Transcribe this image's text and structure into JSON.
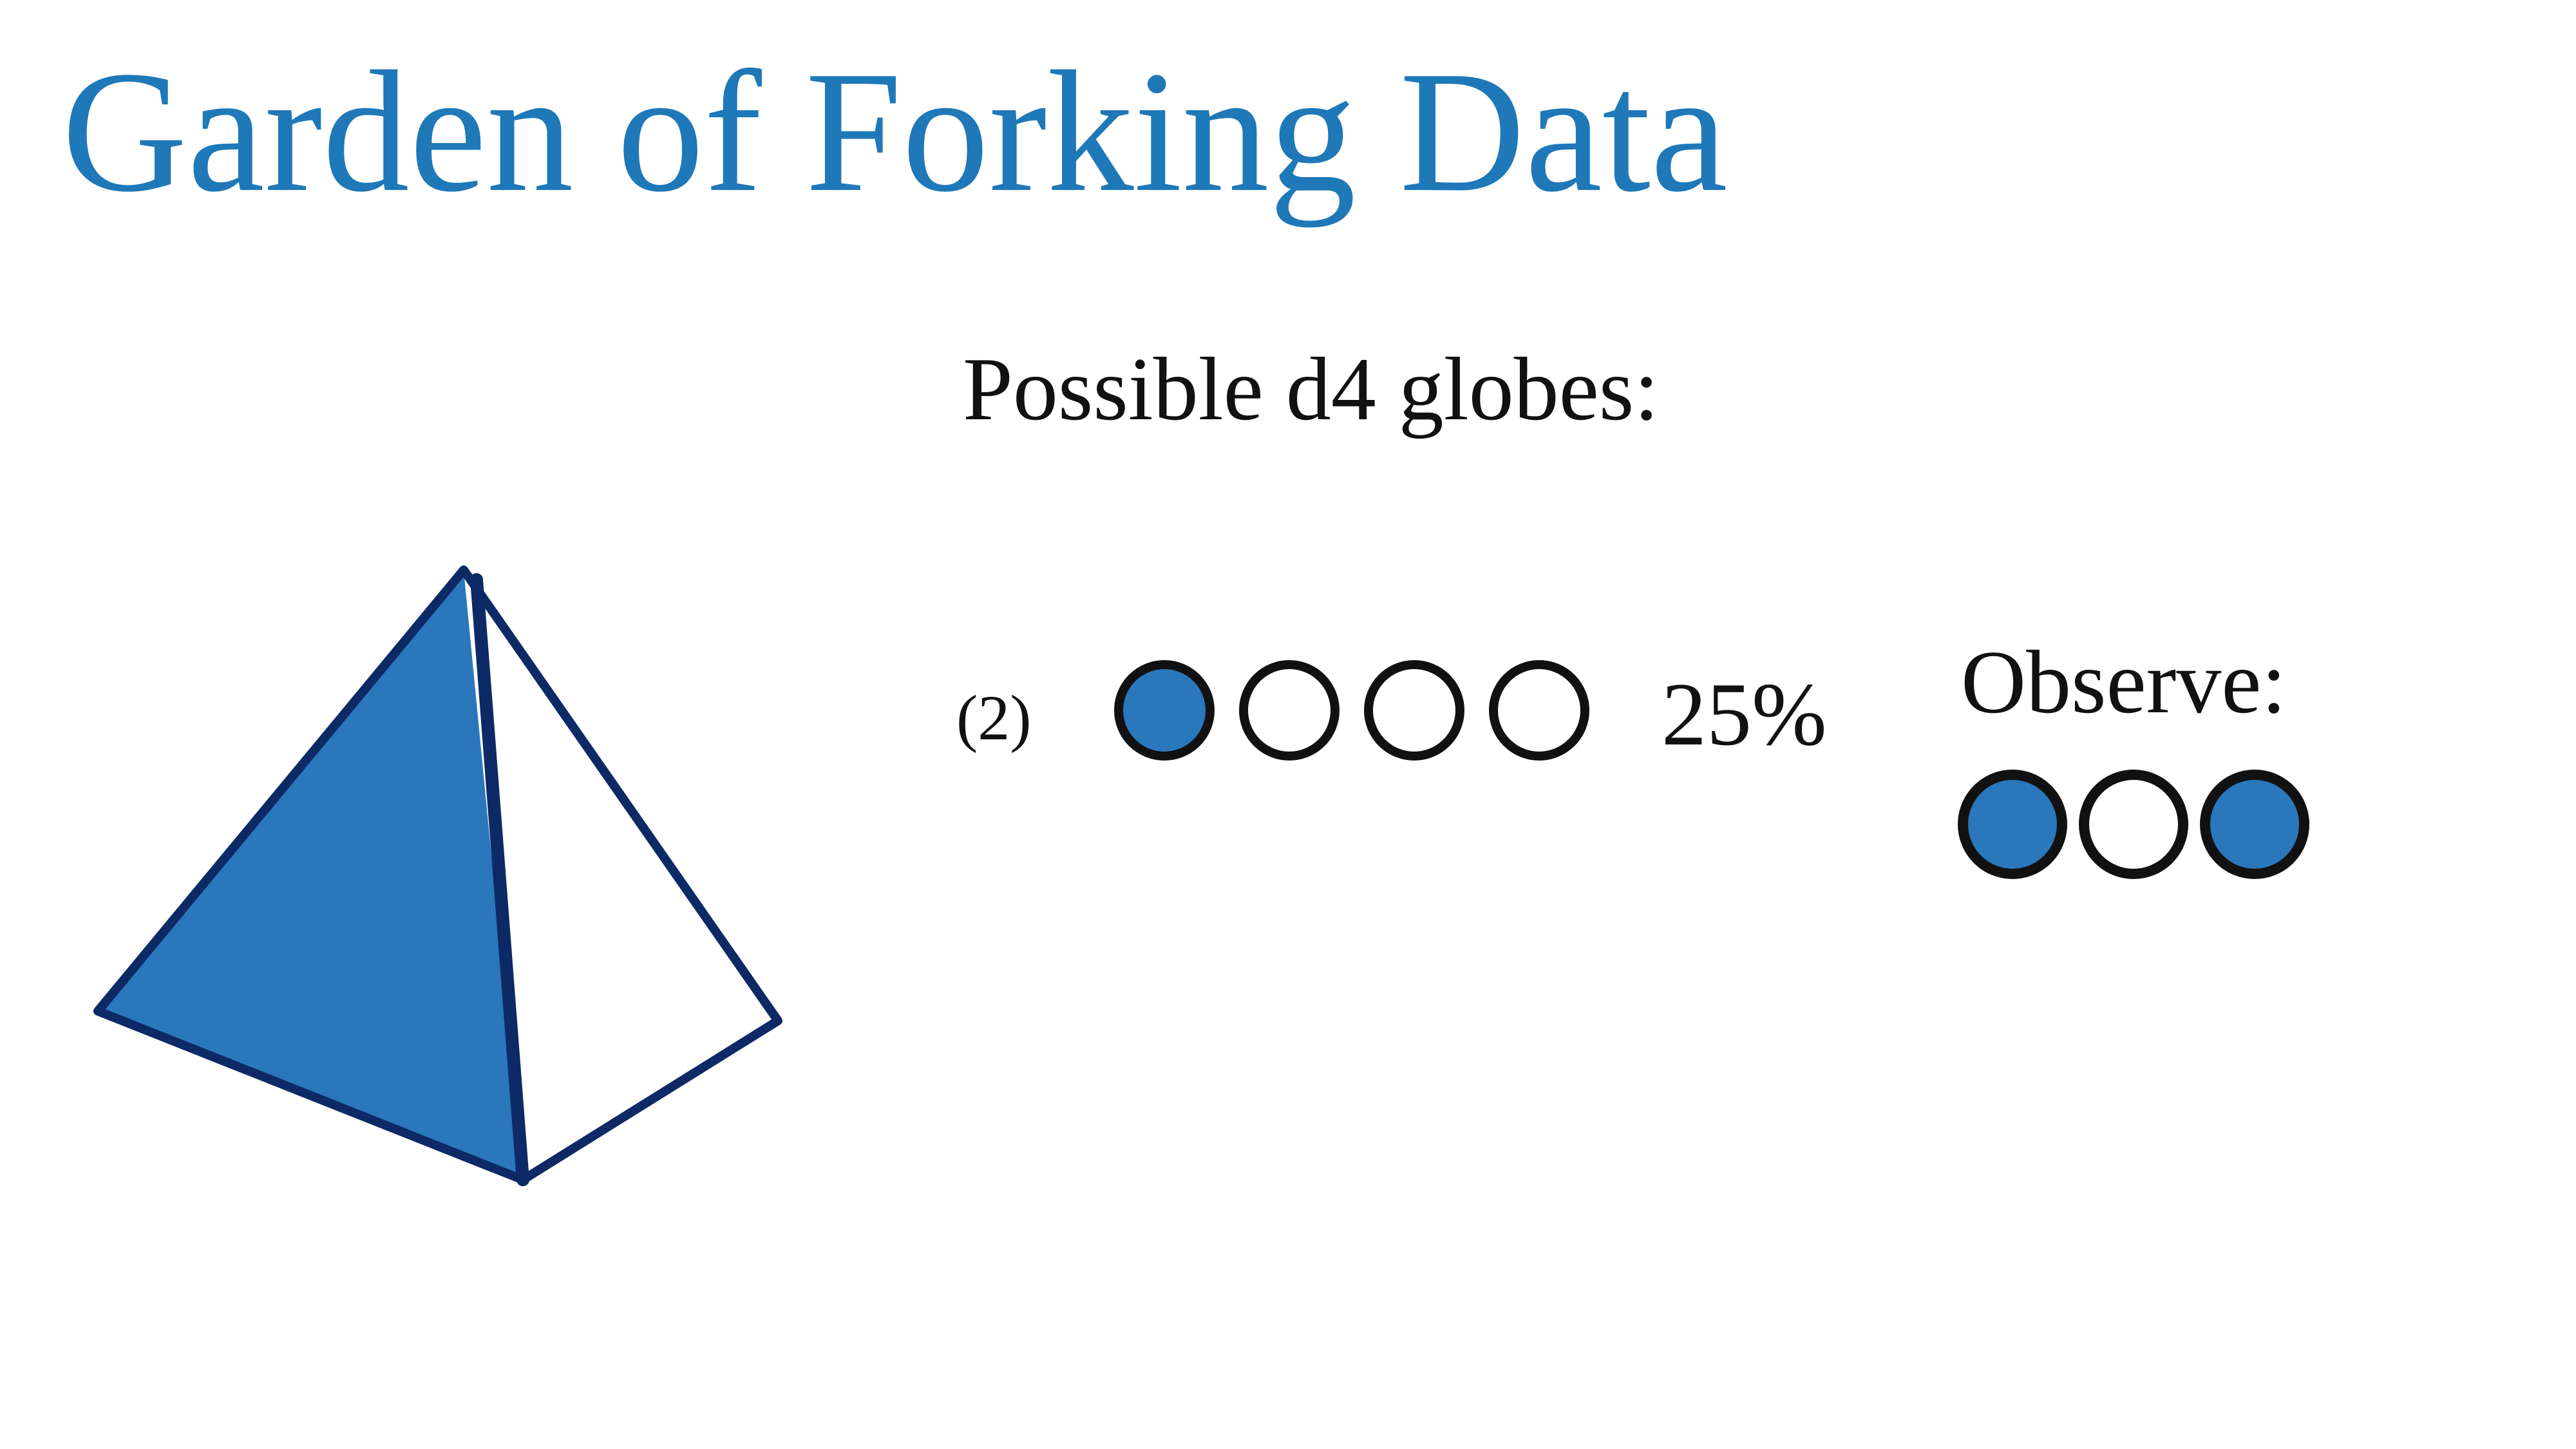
{
  "slide": {
    "title": "Garden of Forking Data",
    "subtitle": "Possible d4 globes:",
    "title_color": "#1f78b8",
    "marble_blue": "#2a77bb",
    "marble_white": "#ffffff"
  },
  "die_illustration": {
    "icon": "d4-tetrahedron-icon",
    "colors": {
      "blue_face": "#2a77bb",
      "white_face": "#ffffff",
      "edge": "#0d2a66"
    }
  },
  "candidate_row": {
    "label": "(2)",
    "marbles": [
      "blue",
      "white",
      "white",
      "white"
    ],
    "percent": "25%"
  },
  "observation": {
    "label": "Observe:",
    "marbles": [
      "blue",
      "white",
      "blue"
    ]
  }
}
